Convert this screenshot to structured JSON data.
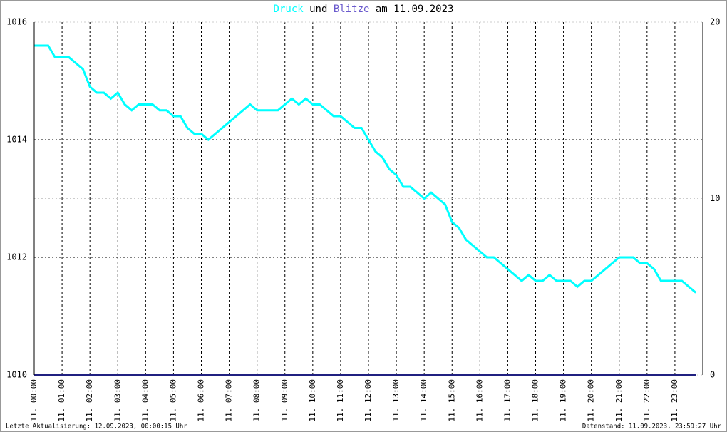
{
  "chart_data": {
    "type": "line",
    "title_connector": "und",
    "title_date": "am 11.09.2023",
    "footer_left": "Letzte Aktualisierung: 12.09.2023, 00:00:15 Uhr",
    "footer_right": "Datenstand: 11.09.2023, 23:59:27 Uhr",
    "x": [
      0,
      0.25,
      0.5,
      0.75,
      1,
      1.25,
      1.5,
      1.75,
      2,
      2.25,
      2.5,
      2.75,
      3,
      3.25,
      3.5,
      3.75,
      4,
      4.25,
      4.5,
      4.75,
      5,
      5.25,
      5.5,
      5.75,
      6,
      6.25,
      6.5,
      6.75,
      7,
      7.25,
      7.5,
      7.75,
      8,
      8.25,
      8.5,
      8.75,
      9,
      9.25,
      9.5,
      9.75,
      10,
      10.25,
      10.5,
      10.75,
      11,
      11.25,
      11.5,
      11.75,
      12,
      12.25,
      12.5,
      12.75,
      13,
      13.25,
      13.5,
      13.75,
      14,
      14.25,
      14.5,
      14.75,
      15,
      15.25,
      15.5,
      15.75,
      16,
      16.25,
      16.5,
      16.75,
      17,
      17.25,
      17.5,
      17.75,
      18,
      18.25,
      18.5,
      18.75,
      19,
      19.25,
      19.5,
      19.75,
      20,
      20.25,
      20.5,
      20.75,
      21,
      21.25,
      21.5,
      21.75,
      22,
      22.25,
      22.5,
      22.75,
      23,
      23.25,
      23.5,
      23.75
    ],
    "series": [
      {
        "name": "Druck",
        "color": "#00ffff",
        "values": [
          1015.6,
          1015.6,
          1015.6,
          1015.4,
          1015.4,
          1015.4,
          1015.3,
          1015.2,
          1014.9,
          1014.8,
          1014.8,
          1014.7,
          1014.8,
          1014.6,
          1014.5,
          1014.6,
          1014.6,
          1014.6,
          1014.5,
          1014.5,
          1014.4,
          1014.4,
          1014.2,
          1014.1,
          1014.1,
          1014.0,
          1014.1,
          1014.2,
          1014.3,
          1014.4,
          1014.5,
          1014.6,
          1014.5,
          1014.5,
          1014.5,
          1014.5,
          1014.6,
          1014.7,
          1014.6,
          1014.7,
          1014.6,
          1014.6,
          1014.5,
          1014.4,
          1014.4,
          1014.3,
          1014.2,
          1014.2,
          1014.0,
          1013.8,
          1013.7,
          1013.5,
          1013.4,
          1013.2,
          1013.2,
          1013.1,
          1013.0,
          1013.1,
          1013.0,
          1012.9,
          1012.6,
          1012.5,
          1012.3,
          1012.2,
          1012.1,
          1012.0,
          1012.0,
          1011.9,
          1011.8,
          1011.7,
          1011.6,
          1011.7,
          1011.6,
          1011.6,
          1011.7,
          1011.6,
          1011.6,
          1011.6,
          1011.5,
          1011.6,
          1011.6,
          1011.7,
          1011.8,
          1011.9,
          1012.0,
          1012.0,
          1012.0,
          1011.9,
          1011.9,
          1011.8,
          1011.6,
          1011.6,
          1011.6,
          1011.6,
          1011.5,
          1011.4
        ]
      },
      {
        "name": "Blitze",
        "color": "#202080",
        "axis": "y2",
        "values": [
          0,
          0,
          0,
          0,
          0,
          0,
          0,
          0,
          0,
          0,
          0,
          0,
          0,
          0,
          0,
          0,
          0,
          0,
          0,
          0,
          0,
          0,
          0,
          0,
          0,
          0,
          0,
          0,
          0,
          0,
          0,
          0,
          0,
          0,
          0,
          0,
          0,
          0,
          0,
          0,
          0,
          0,
          0,
          0,
          0,
          0,
          0,
          0,
          0,
          0,
          0,
          0,
          0,
          0,
          0,
          0,
          0,
          0,
          0,
          0,
          0,
          0,
          0,
          0,
          0,
          0,
          0,
          0,
          0,
          0,
          0,
          0,
          0,
          0,
          0,
          0,
          0,
          0,
          0,
          0,
          0,
          0,
          0,
          0,
          0,
          0,
          0,
          0,
          0,
          0,
          0,
          0,
          0,
          0,
          0,
          0
        ]
      }
    ],
    "xlim": [
      0,
      24
    ],
    "xticks": [
      {
        "value": 0,
        "label": "11. 00:00"
      },
      {
        "value": 1,
        "label": "11. 01:00"
      },
      {
        "value": 2,
        "label": "11. 02:00"
      },
      {
        "value": 3,
        "label": "11. 03:00"
      },
      {
        "value": 4,
        "label": "11. 04:00"
      },
      {
        "value": 5,
        "label": "11. 05:00"
      },
      {
        "value": 6,
        "label": "11. 06:00"
      },
      {
        "value": 7,
        "label": "11. 07:00"
      },
      {
        "value": 8,
        "label": "11. 08:00"
      },
      {
        "value": 9,
        "label": "11. 09:00"
      },
      {
        "value": 10,
        "label": "11. 10:00"
      },
      {
        "value": 11,
        "label": "11. 11:00"
      },
      {
        "value": 12,
        "label": "11. 12:00"
      },
      {
        "value": 13,
        "label": "11. 13:00"
      },
      {
        "value": 14,
        "label": "11. 14:00"
      },
      {
        "value": 15,
        "label": "11. 15:00"
      },
      {
        "value": 16,
        "label": "11. 16:00"
      },
      {
        "value": 17,
        "label": "11. 17:00"
      },
      {
        "value": 18,
        "label": "11. 18:00"
      },
      {
        "value": 19,
        "label": "11. 19:00"
      },
      {
        "value": 20,
        "label": "11. 20:00"
      },
      {
        "value": 21,
        "label": "11. 21:00"
      },
      {
        "value": 22,
        "label": "11. 22:00"
      },
      {
        "value": 23,
        "label": "11. 23:00"
      }
    ],
    "ylim": [
      1010,
      1016
    ],
    "yticks": [
      1010,
      1012,
      1014,
      1016
    ],
    "y2lim": [
      0,
      20
    ],
    "y2ticks": [
      0,
      10,
      20
    ],
    "grid": true
  }
}
